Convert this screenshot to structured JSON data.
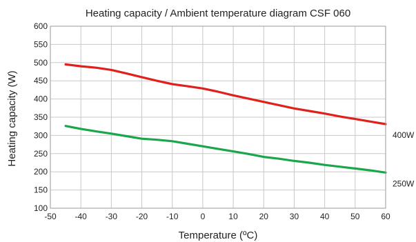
{
  "chart_data": {
    "type": "line",
    "title": "Heating capacity / Ambient temperature diagram CSF 060",
    "xlabel": "Temperature (ºC)",
    "ylabel": "Heating capacity (W)",
    "xlim": [
      -50,
      60
    ],
    "ylim": [
      100,
      600
    ],
    "x_ticks": [
      "-50",
      "-40",
      "-30",
      "-20",
      "-10",
      "0",
      "10",
      "20",
      "30",
      "40",
      "50",
      "60"
    ],
    "y_ticks": [
      "100",
      "150",
      "200",
      "250",
      "300",
      "350",
      "400",
      "450",
      "500",
      "550",
      "600"
    ],
    "grid": true,
    "x": [
      -45,
      -40,
      -35,
      -30,
      -25,
      -20,
      -15,
      -10,
      -5,
      0,
      5,
      10,
      15,
      20,
      25,
      30,
      35,
      40,
      45,
      50,
      55,
      60
    ],
    "series": [
      {
        "name": "400W",
        "color": "#e0201b",
        "values": [
          495,
          490,
          486,
          480,
          470,
          460,
          450,
          441,
          435,
          429,
          420,
          410,
          401,
          392,
          383,
          374,
          367,
          360,
          352,
          345,
          338,
          331
        ]
      },
      {
        "name": "250W",
        "color": "#1aa64b",
        "values": [
          326,
          318,
          311,
          305,
          298,
          291,
          288,
          284,
          277,
          270,
          263,
          256,
          249,
          241,
          236,
          230,
          225,
          219,
          214,
          209,
          204,
          198
        ]
      }
    ]
  }
}
